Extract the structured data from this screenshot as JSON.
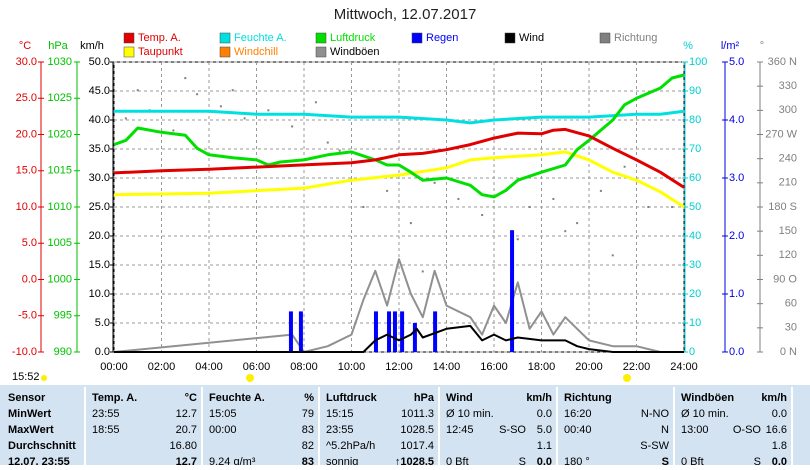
{
  "chart_data": {
    "type": "line",
    "title": "Mittwoch, 12.07.2017",
    "grid": true,
    "xlim": [
      0,
      24
    ],
    "xticks": [
      {
        "value": 0,
        "label": "00:00"
      },
      {
        "value": 2,
        "label": "02:00"
      },
      {
        "value": 4,
        "label": "04:00"
      },
      {
        "value": 6,
        "label": "06:00"
      },
      {
        "value": 8,
        "label": "08:00"
      },
      {
        "value": 10,
        "label": "10:00"
      },
      {
        "value": 12,
        "label": "12:00"
      },
      {
        "value": 14,
        "label": "14:00"
      },
      {
        "value": 16,
        "label": "16:00"
      },
      {
        "value": 18,
        "label": "18:00"
      },
      {
        "value": 20,
        "label": "20:00"
      },
      {
        "value": 22,
        "label": "22:00"
      },
      {
        "value": 24,
        "label": "24:00"
      }
    ],
    "axes": [
      {
        "unit": "°C",
        "color": "#e00000",
        "ylim": [
          -10,
          30
        ],
        "yticks": [
          {
            "value": 30,
            "label": "30.0"
          },
          {
            "value": 25,
            "label": "25.0"
          },
          {
            "value": 20,
            "label": "20.0"
          },
          {
            "value": 15,
            "label": "15.0"
          },
          {
            "value": 10,
            "label": "10.0"
          },
          {
            "value": 5,
            "label": "5.0"
          },
          {
            "value": 0,
            "label": "0.0"
          },
          {
            "value": -5,
            "label": "-5.0"
          },
          {
            "value": -10,
            "label": "-10.0"
          }
        ]
      },
      {
        "unit": "hPa",
        "color": "#00c000",
        "ylim": [
          990,
          1030
        ],
        "yticks": [
          1030,
          1025,
          1020,
          1015,
          1010,
          1005,
          1000,
          995,
          990
        ]
      },
      {
        "unit": "km/h",
        "color": "#000000",
        "ylim": [
          0,
          50
        ],
        "yticks": [
          {
            "value": 50,
            "label": "50.0"
          },
          {
            "value": 45,
            "label": "45.0"
          },
          {
            "value": 40,
            "label": "40.0"
          },
          {
            "value": 35,
            "label": "35.0"
          },
          {
            "value": 30,
            "label": "30.0"
          },
          {
            "value": 25,
            "label": "25.0"
          },
          {
            "value": 20,
            "label": "20.0"
          },
          {
            "value": 15,
            "label": "15.0"
          },
          {
            "value": 10,
            "label": "10.0"
          },
          {
            "value": 5,
            "label": "5.0"
          },
          {
            "value": 0,
            "label": "0.0"
          }
        ]
      },
      {
        "unit": "%",
        "color": "#00d0d0",
        "ylim": [
          0,
          100
        ],
        "yticks": [
          100,
          90,
          80,
          70,
          60,
          50,
          40,
          30,
          20,
          10,
          0
        ]
      },
      {
        "unit": "l/m²",
        "color": "#0000e0",
        "ylim": [
          0,
          5
        ],
        "yticks": [
          {
            "value": 5,
            "label": "5.0"
          },
          {
            "value": 4,
            "label": "4.0"
          },
          {
            "value": 3,
            "label": "3.0"
          },
          {
            "value": 2,
            "label": "2.0"
          },
          {
            "value": 1,
            "label": "1.0"
          },
          {
            "value": 0,
            "label": "0.0"
          }
        ]
      },
      {
        "unit": "°",
        "color": "#808080",
        "ylim": [
          0,
          360
        ],
        "yticks": [
          {
            "value": 360,
            "label": "360 N"
          },
          330,
          300,
          {
            "value": 270,
            "label": "270 W"
          },
          240,
          210,
          {
            "value": 180,
            "label": "180 S"
          },
          150,
          120,
          {
            "value": 90,
            "label": "90 O"
          },
          60,
          30,
          {
            "value": 0,
            "label": "0 N"
          }
        ]
      }
    ],
    "series": [
      {
        "name": "Temp. A.",
        "color": "#e00000",
        "kind": "line",
        "axis": 0,
        "width": 3,
        "x": [
          0,
          2,
          4,
          6,
          8,
          10,
          11,
          12,
          13,
          14,
          15,
          16,
          17,
          18,
          18.5,
          19,
          20,
          21,
          22,
          23,
          24
        ],
        "values": [
          14.7,
          15.0,
          15.2,
          15.5,
          15.8,
          16.1,
          16.5,
          17.2,
          17.4,
          17.9,
          18.6,
          19.5,
          20.2,
          20.1,
          20.6,
          20.7,
          19.8,
          18.1,
          16.5,
          14.8,
          12.7
        ]
      },
      {
        "name": "Feuchte A.",
        "color": "#00e0e0",
        "kind": "line",
        "axis": 3,
        "width": 3,
        "x": [
          0,
          4,
          6,
          8,
          10,
          12,
          14,
          15,
          16,
          18,
          20,
          22,
          23,
          24
        ],
        "values": [
          83,
          83,
          82,
          82,
          81,
          81,
          80,
          79,
          80,
          81,
          81,
          82,
          82,
          83
        ]
      },
      {
        "name": "Luftdruck",
        "color": "#00e000",
        "kind": "line",
        "axis": 1,
        "width": 3,
        "x": [
          0,
          0.5,
          1,
          2,
          3,
          3.5,
          4,
          5,
          6,
          6.5,
          7,
          8,
          9,
          10,
          11,
          11.5,
          12,
          12.5,
          13,
          14,
          15,
          15.5,
          16,
          16.5,
          17,
          18,
          19,
          19.5,
          20,
          21,
          21.5,
          22,
          23,
          23.5,
          24
        ],
        "values": [
          1018.6,
          1019.2,
          1020.9,
          1020.3,
          1019.9,
          1018.1,
          1017.2,
          1016.8,
          1016.5,
          1015.8,
          1016.2,
          1016.5,
          1017.2,
          1017.6,
          1016.5,
          1015.8,
          1015.8,
          1014.8,
          1013.7,
          1014.0,
          1013.0,
          1011.7,
          1011.4,
          1012.3,
          1013.7,
          1014.8,
          1015.8,
          1017.9,
          1019.2,
          1022.0,
          1024.1,
          1025.0,
          1026.4,
          1027.8,
          1028.2
        ]
      },
      {
        "name": "Regen",
        "color": "#0000ff",
        "kind": "bar",
        "axis": 4,
        "x": [
          7.45,
          7.87,
          11.03,
          11.58,
          11.83,
          12.13,
          12.67,
          13.52,
          16.76
        ],
        "values": [
          0.7,
          0.7,
          0.7,
          0.7,
          0.7,
          0.7,
          0.5,
          0.7,
          2.1
        ]
      },
      {
        "name": "Wind",
        "color": "#000000",
        "kind": "line",
        "axis": 2,
        "width": 2,
        "x": [
          0,
          10.5,
          11,
          11.5,
          12,
          12.5,
          12.75,
          13,
          14,
          15,
          15.5,
          16,
          16.5,
          17,
          18,
          19,
          19.5,
          20,
          21,
          24
        ],
        "values": [
          0,
          0,
          2,
          3,
          2,
          3,
          4,
          2.5,
          4,
          4.5,
          2,
          3,
          2,
          2.5,
          2,
          2,
          1,
          0.5,
          0,
          0
        ]
      },
      {
        "name": "Richtung",
        "color": "#808080",
        "kind": "scatter",
        "axis": 5,
        "x": [
          0.5,
          1.5,
          2.5,
          3.5,
          4.5,
          5.5,
          6.5,
          7.5,
          8.5,
          9.5,
          10.5,
          11.5,
          12.5,
          13.5,
          14.5,
          15.5,
          16.5,
          17.5,
          18.5,
          19.5,
          20.5,
          21.5,
          22.5,
          23.5,
          1,
          3,
          5,
          9,
          13,
          17,
          19,
          21
        ],
        "values": [
          290,
          300,
          275,
          320,
          305,
          290,
          300,
          280,
          310,
          250,
          180,
          200,
          160,
          210,
          190,
          170,
          200,
          180,
          190,
          160,
          200,
          230,
          180,
          180,
          325,
          340,
          325,
          260,
          100,
          140,
          150,
          120
        ]
      },
      {
        "name": "Taupunkt",
        "color": "#ffff00",
        "kind": "line",
        "axis": 0,
        "width": 3,
        "x": [
          0,
          4,
          8,
          10,
          12,
          14,
          15,
          16,
          18,
          19,
          20,
          21,
          22,
          23,
          24
        ],
        "values": [
          11.7,
          11.9,
          12.6,
          13.7,
          14.4,
          15.4,
          16.5,
          16.8,
          17.2,
          17.6,
          16.5,
          14.8,
          13.7,
          12.1,
          10.0
        ]
      },
      {
        "name": "Windchill",
        "color": "#ff8000",
        "kind": "line",
        "axis": 0,
        "width": 3,
        "x": [],
        "values": []
      },
      {
        "name": "Windböen",
        "color": "#909090",
        "kind": "line",
        "axis": 2,
        "width": 2,
        "x": [
          0,
          7.5,
          8,
          9,
          10,
          10.5,
          11,
          11.5,
          12,
          12.5,
          13,
          13.5,
          14,
          15,
          15.5,
          16,
          16.5,
          17,
          17.5,
          18,
          18.5,
          19,
          19.5,
          20,
          21,
          22,
          23,
          24
        ],
        "values": [
          0,
          3,
          0,
          1,
          3,
          9,
          14,
          8,
          16,
          10,
          6,
          14,
          8,
          6,
          3,
          8,
          5,
          12,
          4,
          7,
          3,
          6,
          4,
          2,
          1,
          1,
          0,
          0
        ]
      }
    ]
  },
  "time": "15:52",
  "table": {
    "header": {
      "label": "Sensor",
      "cells": [
        {
          "l": "Temp. A.",
          "r": "°C"
        },
        {
          "l": "Feuchte A.",
          "r": "%"
        },
        {
          "l": "Luftdruck",
          "r": "hPa"
        },
        {
          "l": "Wind",
          "r": "km/h"
        },
        {
          "l": "Richtung"
        },
        {
          "l": "Windböen",
          "r": "km/h"
        }
      ]
    },
    "rows": [
      {
        "label": "MinWert",
        "cells": [
          {
            "l": "23:55",
            "r": "12.7"
          },
          {
            "l": "15:05",
            "r": "79"
          },
          {
            "l": "15:15",
            "r": "1011.3"
          },
          {
            "l": "Ø 10 min.",
            "r": "0.0"
          },
          {
            "l": "16:20",
            "r": "N-NO"
          },
          {
            "l": "Ø 10 min.",
            "r": "0.0"
          }
        ]
      },
      {
        "label": "MaxWert",
        "cells": [
          {
            "l": "18:55",
            "r": "20.7"
          },
          {
            "l": "00:00",
            "r": "83"
          },
          {
            "l": "23:55",
            "r": "1028.5"
          },
          {
            "l": "12:45",
            "m": "S-SO",
            "r": "5.0"
          },
          {
            "l": "00:40",
            "r": "N"
          },
          {
            "l": "13:00",
            "m": "O-SO",
            "r": "16.6"
          }
        ]
      },
      {
        "label": "Durchschnitt",
        "cells": [
          {
            "r": "16.80"
          },
          {
            "r": "82"
          },
          {
            "l": "^5.2hPa/h",
            "r": "1017.4"
          },
          {
            "r": "1.1"
          },
          {
            "r": "S-SW"
          },
          {
            "r": "1.8"
          }
        ]
      },
      {
        "label": "12.07. 23:55",
        "bold": true,
        "cells": [
          {
            "r": "12.7"
          },
          {
            "l": "9.24 g/m³",
            "r": "83"
          },
          {
            "l": "sonnig",
            "r": "↑1028.5"
          },
          {
            "l": "0 Bft",
            "m": "S",
            "r": "0.0"
          },
          {
            "l": "180 °",
            "r": "S"
          },
          {
            "l": "0 Bft",
            "m": "S",
            "r": "0.0"
          }
        ]
      }
    ]
  }
}
